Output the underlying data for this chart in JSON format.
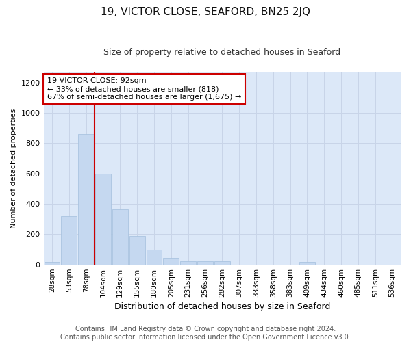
{
  "title": "19, VICTOR CLOSE, SEAFORD, BN25 2JQ",
  "subtitle": "Size of property relative to detached houses in Seaford",
  "xlabel": "Distribution of detached houses by size in Seaford",
  "ylabel": "Number of detached properties",
  "categories": [
    "28sqm",
    "53sqm",
    "78sqm",
    "104sqm",
    "129sqm",
    "155sqm",
    "180sqm",
    "205sqm",
    "231sqm",
    "256sqm",
    "282sqm",
    "307sqm",
    "333sqm",
    "358sqm",
    "383sqm",
    "409sqm",
    "434sqm",
    "460sqm",
    "485sqm",
    "511sqm",
    "536sqm"
  ],
  "bar_heights": [
    15,
    320,
    860,
    600,
    365,
    190,
    100,
    45,
    20,
    20,
    20,
    0,
    0,
    0,
    0,
    15,
    0,
    0,
    0,
    0,
    0
  ],
  "bar_color": "#c5d8f0",
  "bar_edge_color": "#aac4e0",
  "vline_x": 3.0,
  "vline_color": "#cc0000",
  "annotation_text": "19 VICTOR CLOSE: 92sqm\n← 33% of detached houses are smaller (818)\n67% of semi-detached houses are larger (1,675) →",
  "ylim": [
    0,
    1270
  ],
  "yticks": [
    0,
    200,
    400,
    600,
    800,
    1000,
    1200
  ],
  "grid_color": "#c8d4e8",
  "plot_bg_color": "#dce8f8",
  "fig_bg_color": "#ffffff",
  "footnote": "Contains HM Land Registry data © Crown copyright and database right 2024.\nContains public sector information licensed under the Open Government Licence v3.0.",
  "title_fontsize": 11,
  "subtitle_fontsize": 9,
  "annotation_fontsize": 8,
  "ylabel_fontsize": 8,
  "xlabel_fontsize": 9,
  "footnote_fontsize": 7,
  "tick_fontsize": 7.5
}
